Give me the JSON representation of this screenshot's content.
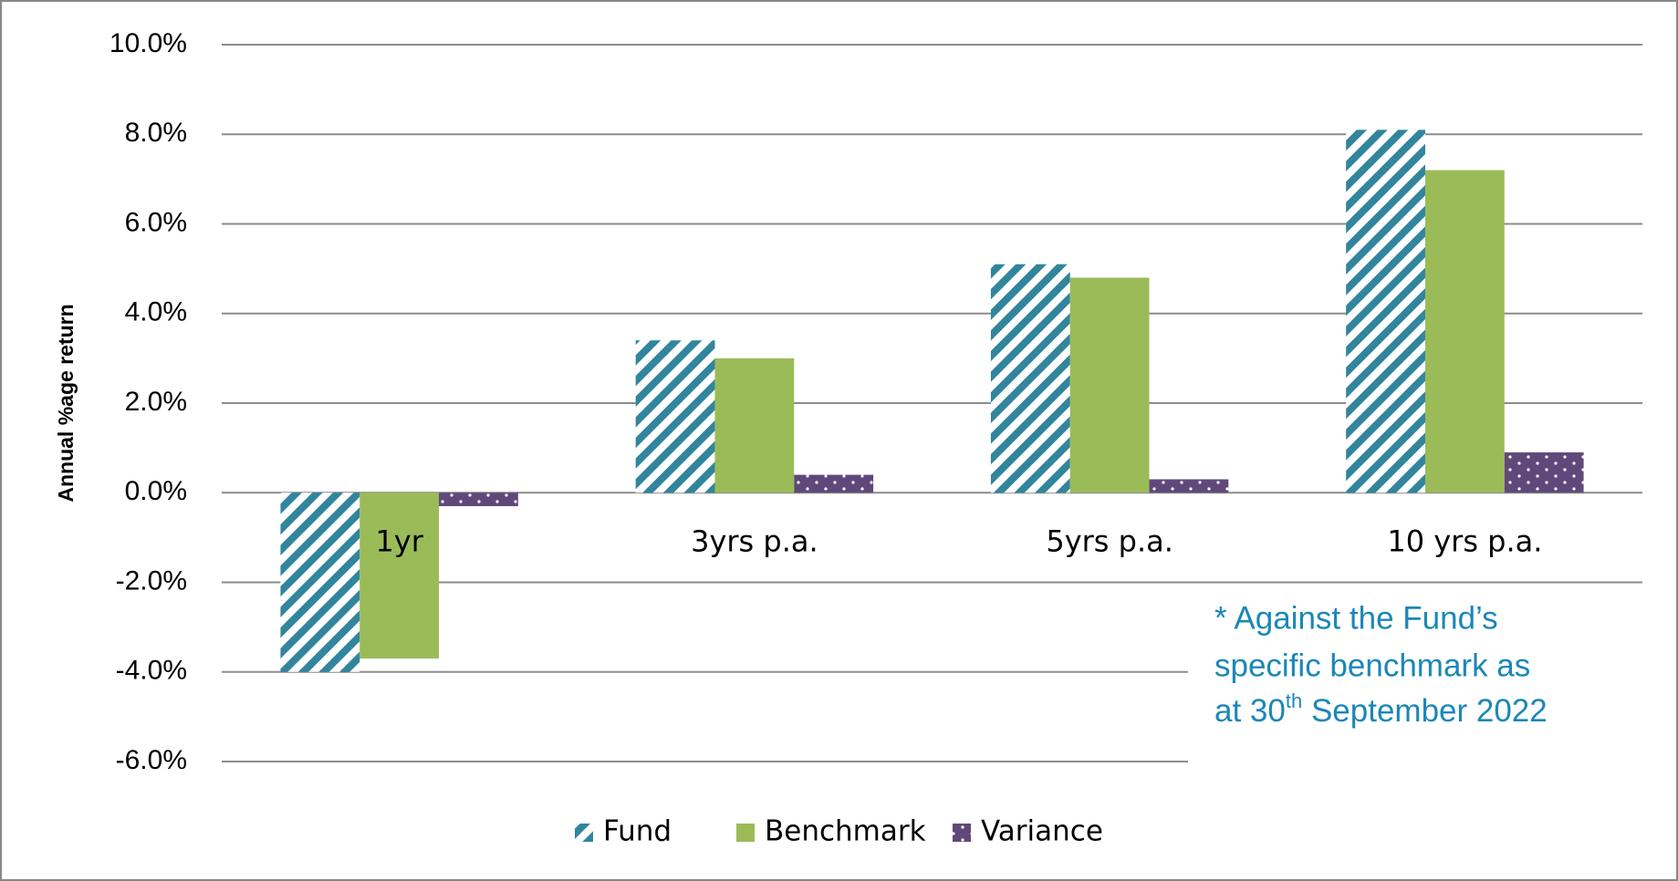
{
  "chart_data": {
    "type": "bar",
    "y_axis_label": "Annual %age return",
    "categories": [
      "1yr",
      "3yrs p.a.",
      "5yrs p.a.",
      "10 yrs p.a."
    ],
    "series": [
      {
        "name": "Fund",
        "color": "#31859c",
        "pattern": "diagonal",
        "values": [
          -4.0,
          3.4,
          5.1,
          8.1
        ]
      },
      {
        "name": "Benchmark",
        "color": "#9bbb59",
        "pattern": "solid",
        "values": [
          -3.7,
          3.0,
          4.8,
          7.2
        ]
      },
      {
        "name": "Variance",
        "color": "#60497a",
        "pattern": "dots",
        "values": [
          -0.3,
          0.4,
          0.3,
          0.9
        ]
      }
    ],
    "ylim": [
      -6,
      10
    ],
    "yticks": [
      {
        "value": -6,
        "label": "-6.0%"
      },
      {
        "value": -4,
        "label": "-4.0%"
      },
      {
        "value": -2,
        "label": "-2.0%"
      },
      {
        "value": 0,
        "label": "0.0%"
      },
      {
        "value": 2,
        "label": "2.0%"
      },
      {
        "value": 4,
        "label": "4.0%"
      },
      {
        "value": 6,
        "label": "6.0%"
      },
      {
        "value": 8,
        "label": "8.0%"
      },
      {
        "value": 10,
        "label": "10.0%"
      }
    ],
    "grid": true,
    "legend": "bottom",
    "annotation": {
      "lines": [
        "* Against the Fund’s",
        "specific benchmark as"
      ],
      "last_line": [
        "at 30",
        "th",
        " September 2022"
      ]
    }
  }
}
